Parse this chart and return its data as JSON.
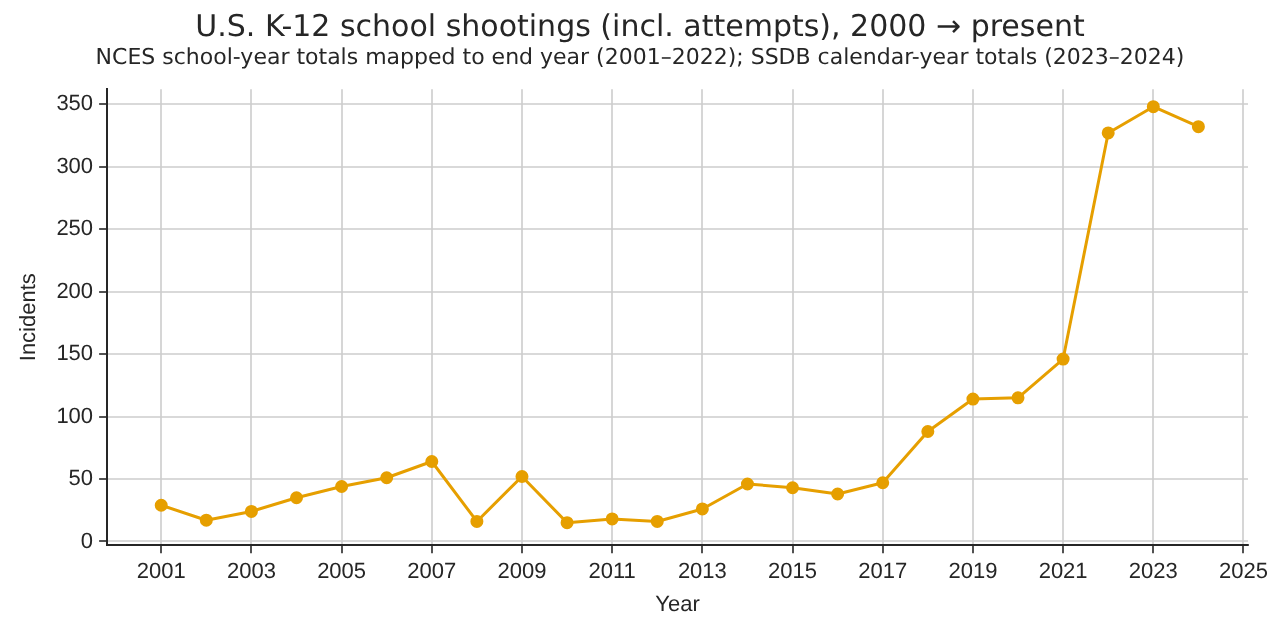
{
  "chart_data": {
    "type": "line",
    "title": "U.S. K-12 school shootings (incl. attempts), 2000 → present",
    "subtitle": "NCES school-year totals mapped to end year (2001–2022); SSDB calendar-year totals (2023–2024)",
    "xlabel": "Year",
    "ylabel": "Incidents",
    "x": [
      2001,
      2002,
      2003,
      2004,
      2005,
      2006,
      2007,
      2008,
      2009,
      2010,
      2011,
      2012,
      2013,
      2014,
      2015,
      2016,
      2017,
      2018,
      2019,
      2020,
      2021,
      2022,
      2023,
      2024
    ],
    "series": [
      {
        "color": "#e69f00",
        "values": [
          29,
          17,
          24,
          35,
          44,
          51,
          64,
          16,
          52,
          15,
          18,
          16,
          26,
          46,
          43,
          38,
          47,
          88,
          114,
          115,
          146,
          327,
          348,
          332
        ]
      }
    ],
    "xlim": [
      1999.8,
      2025.1
    ],
    "xticks": [
      2001,
      2003,
      2005,
      2007,
      2009,
      2011,
      2013,
      2015,
      2017,
      2019,
      2021,
      2023,
      2025
    ],
    "ylim": [
      -3,
      362
    ],
    "yticks": [
      0,
      50,
      100,
      150,
      200,
      250,
      300,
      350
    ],
    "grid": true,
    "marker": "circle",
    "line_style": "solid"
  }
}
